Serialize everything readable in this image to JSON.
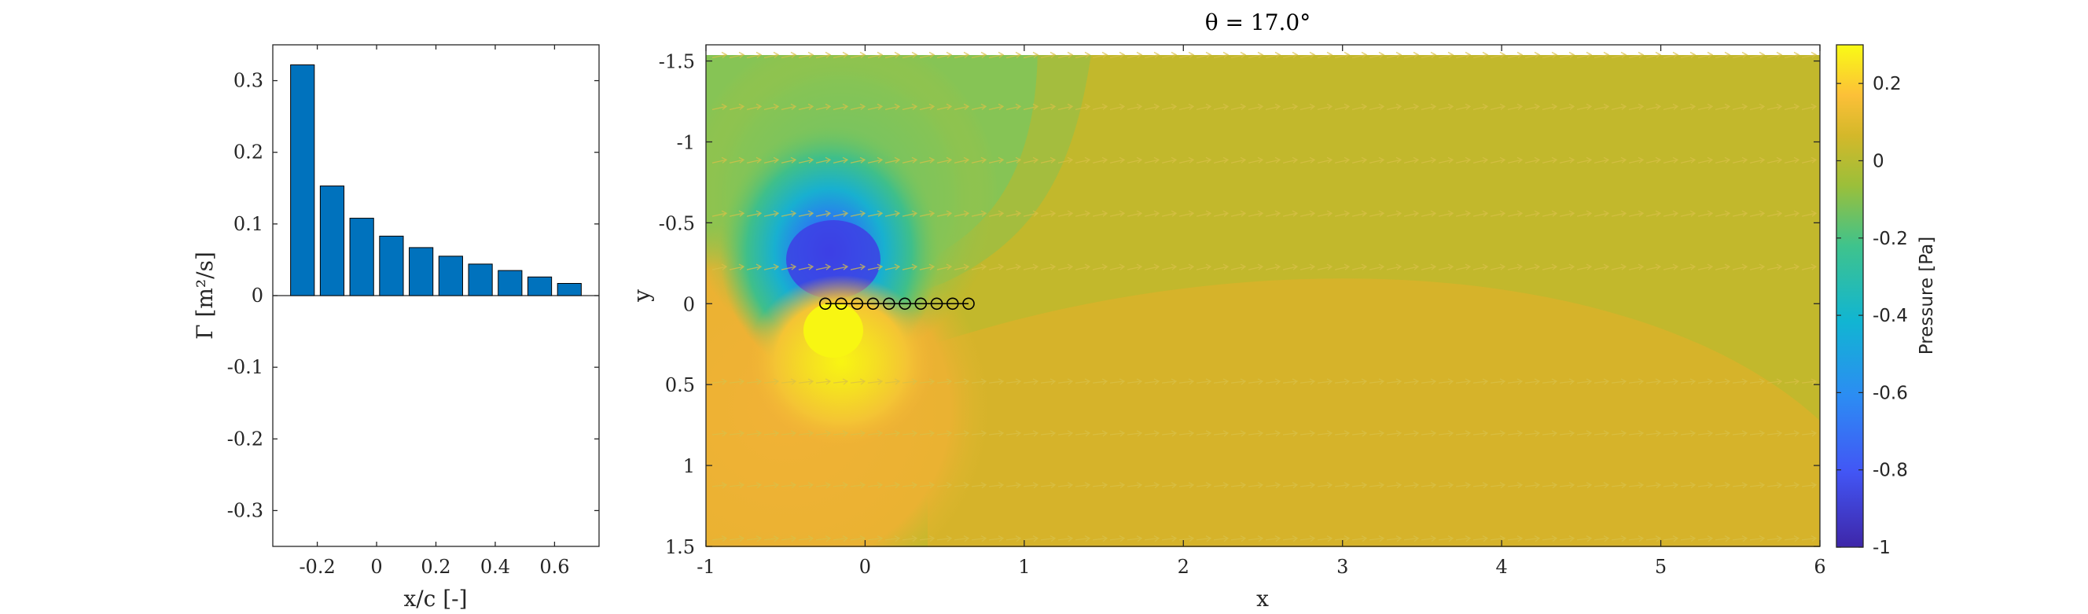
{
  "chart_data": [
    {
      "type": "bar",
      "xlabel": "x/c [-]",
      "ylabel": "Γ [m²/s]",
      "x": [
        -0.25,
        -0.15,
        -0.05,
        0.05,
        0.15,
        0.25,
        0.35,
        0.45,
        0.55,
        0.65
      ],
      "values": [
        0.322,
        0.153,
        0.108,
        0.083,
        0.067,
        0.055,
        0.044,
        0.035,
        0.026,
        0.017
      ],
      "xlim": [
        -0.35,
        0.75
      ],
      "ylim": [
        -0.35,
        0.35
      ],
      "xticks": [
        -0.2,
        0,
        0.2,
        0.4,
        0.6
      ],
      "xtick_labels": [
        "-0.2",
        "0",
        "0.2",
        "0.4",
        "0.6"
      ],
      "yticks": [
        0.3,
        0.2,
        0.1,
        0,
        -0.1,
        -0.2,
        -0.3
      ],
      "ytick_labels": [
        "0.3",
        "0.2",
        "0.1",
        "0",
        "-0.1",
        "-0.2",
        "-0.3"
      ],
      "bar_color": "#0072BD",
      "grid": false
    },
    {
      "type": "heatmap",
      "title": "θ = 17.0°",
      "xlabel": "x",
      "ylabel": "y",
      "xlim": [
        -1,
        6
      ],
      "ylim": [
        -1.6,
        1.5
      ],
      "y_reversed": true,
      "xticks": [
        -1,
        0,
        1,
        2,
        3,
        4,
        5,
        6
      ],
      "xtick_labels": [
        "-1",
        "0",
        "1",
        "2",
        "3",
        "4",
        "5",
        "6"
      ],
      "yticks": [
        -1.5,
        -1,
        -0.5,
        0,
        0.5,
        1,
        1.5
      ],
      "ytick_labels": [
        "-1.5",
        "-1",
        "-0.5",
        "0",
        "0.5",
        "1",
        "1.5"
      ],
      "vortex_markers_x": [
        -0.25,
        -0.15,
        -0.05,
        0.05,
        0.15,
        0.25,
        0.35,
        0.45,
        0.55,
        0.65
      ],
      "vortex_markers_y": 0,
      "colormap": "parula",
      "colorbar": {
        "label": "Pressure [Pa]",
        "range": [
          -1,
          0.3
        ],
        "ticks": [
          0.2,
          0,
          -0.2,
          -0.4,
          -0.6,
          -0.8,
          -1
        ],
        "tick_labels": [
          "0.2",
          "0",
          "-0.2",
          "-0.4",
          "-0.6",
          "-0.8",
          "-1"
        ]
      },
      "colors": {
        "suction_peak": "#3e3ee0",
        "suction_mid": "#12b6c4",
        "freestream": "#c0b82a",
        "pressure_side": "#f2b030",
        "stagnation": "#f6f214"
      }
    }
  ]
}
